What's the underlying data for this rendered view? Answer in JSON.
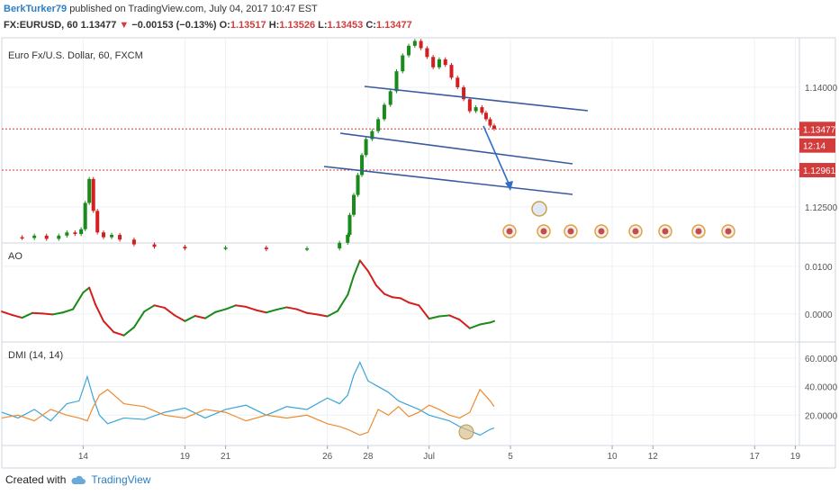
{
  "header": {
    "author": "BerkTurker79",
    "published_text": "published on TradingView.com, July 04, 2017 10:47 EST",
    "symbol": "FX:EURUSD, 60",
    "last": "1.13477",
    "change": "−0.00153 (−0.13%)",
    "o_label": "O:",
    "o": "1.13517",
    "h_label": "H:",
    "h": "1.13526",
    "l_label": "L:",
    "l": "1.13453",
    "c_label": "C:",
    "c": "1.13477"
  },
  "colors": {
    "up": "#1a8a1a",
    "down": "#d21f1f",
    "trendline": "#3a5aa0",
    "pricebox": "#d23c3c",
    "dmi_plus": "#3aa6d8",
    "dmi_minus": "#f08a30"
  },
  "chart_data": [
    {
      "type": "candlestick",
      "title": "Euro Fx/U.S. Dollar, 60, FXCM",
      "y_ticks": [
        "1.14000",
        "1.12500"
      ],
      "y_tick_values": [
        1.14,
        1.125
      ],
      "ylim": [
        1.1207,
        1.1462
      ],
      "price_labels": [
        {
          "label": "1.13477",
          "value": 1.13477
        },
        {
          "label": "12:14",
          "value": 1.1327
        },
        {
          "label": "1.12961",
          "value": 1.12961
        }
      ],
      "hlines": [
        1.13477,
        1.12961
      ],
      "x_ticks": [
        "14",
        "19",
        "21",
        "26",
        "28",
        "Jul",
        "5",
        "10",
        "12",
        "17",
        "19"
      ],
      "x_tick_values": [
        14,
        19,
        21,
        26,
        28,
        31,
        35,
        40,
        42,
        47,
        49
      ],
      "xlim": [
        10.0,
        49.2
      ],
      "series_close": [
        [
          10.0,
          1.1212
        ],
        [
          11.0,
          1.1211
        ],
        [
          11.6,
          1.1214
        ],
        [
          12.2,
          1.121
        ],
        [
          12.8,
          1.1214
        ],
        [
          13.2,
          1.1218
        ],
        [
          13.6,
          1.1216
        ],
        [
          13.9,
          1.1222
        ],
        [
          14.1,
          1.1255
        ],
        [
          14.3,
          1.1285
        ],
        [
          14.5,
          1.1245
        ],
        [
          14.7,
          1.1218
        ],
        [
          15.0,
          1.1212
        ],
        [
          15.4,
          1.1215
        ],
        [
          15.8,
          1.1209
        ],
        [
          16.5,
          1.1203
        ],
        [
          17.5,
          1.12
        ],
        [
          19.0,
          1.1198
        ],
        [
          21.0,
          1.1199
        ],
        [
          23.0,
          1.1197
        ],
        [
          25.0,
          1.1198
        ],
        [
          26.6,
          1.1205
        ],
        [
          27.0,
          1.1215
        ],
        [
          27.1,
          1.124
        ],
        [
          27.3,
          1.1265
        ],
        [
          27.5,
          1.129
        ],
        [
          27.7,
          1.1315
        ],
        [
          27.9,
          1.1335
        ],
        [
          28.2,
          1.1345
        ],
        [
          28.5,
          1.136
        ],
        [
          28.8,
          1.1378
        ],
        [
          29.1,
          1.1395
        ],
        [
          29.4,
          1.142
        ],
        [
          29.7,
          1.144
        ],
        [
          30.0,
          1.1452
        ],
        [
          30.3,
          1.1458
        ],
        [
          30.6,
          1.1449
        ],
        [
          30.9,
          1.1438
        ],
        [
          31.2,
          1.1425
        ],
        [
          31.5,
          1.1435
        ],
        [
          31.8,
          1.1428
        ],
        [
          32.1,
          1.1412
        ],
        [
          32.4,
          1.14
        ],
        [
          32.7,
          1.1385
        ],
        [
          33.0,
          1.137
        ],
        [
          33.3,
          1.1375
        ],
        [
          33.6,
          1.1368
        ],
        [
          33.8,
          1.136
        ],
        [
          34.0,
          1.1352
        ],
        [
          34.2,
          1.1348
        ]
      ]
    },
    {
      "type": "line",
      "title": "AO",
      "y_ticks": [
        "0.0100",
        "0.0000"
      ],
      "y_tick_values": [
        0.01,
        0.0
      ],
      "ylim": [
        -0.0055,
        0.0145
      ],
      "x": [
        10,
        10.5,
        11,
        11.5,
        12,
        12.5,
        13,
        13.5,
        14,
        14.3,
        14.6,
        15,
        15.5,
        16,
        16.5,
        17,
        17.5,
        18,
        18.5,
        19,
        19.5,
        20,
        20.5,
        21,
        21.5,
        22,
        22.5,
        23,
        23.5,
        24,
        24.5,
        25,
        25.5,
        26,
        26.5,
        27,
        27.3,
        27.6,
        28,
        28.4,
        28.8,
        29.2,
        29.6,
        30,
        30.5,
        31,
        31.5,
        32,
        32.5,
        33,
        33.5,
        34,
        34.2
      ],
      "values": [
        0.0005,
        -0.0002,
        -0.0008,
        0.0002,
        0.0001,
        -0.0001,
        0.0003,
        0.001,
        0.0045,
        0.0055,
        0.002,
        -0.0015,
        -0.0038,
        -0.0045,
        -0.0028,
        0.0005,
        0.0018,
        0.0013,
        -0.0003,
        -0.0015,
        -0.0004,
        -0.0009,
        0.0004,
        0.001,
        0.0018,
        0.0015,
        0.0008,
        0.0003,
        0.0009,
        0.0014,
        0.001,
        0.0002,
        -0.0001,
        -0.0005,
        0.0006,
        0.004,
        0.008,
        0.0112,
        0.009,
        0.006,
        0.0042,
        0.0035,
        0.0033,
        0.0024,
        0.0018,
        -0.001,
        -0.0005,
        -0.0003,
        -0.0012,
        -0.003,
        -0.0022,
        -0.0018,
        -0.0015
      ]
    },
    {
      "type": "line",
      "title": "DMI (14, 14)",
      "y_ticks": [
        "60.0000",
        "40.0000",
        "20.0000"
      ],
      "y_tick_values": [
        60,
        40,
        20
      ],
      "ylim": [
        0,
        70
      ],
      "series": [
        {
          "color": "#3aa6d8",
          "x": [
            10,
            10.8,
            11.6,
            12.4,
            13.2,
            13.8,
            14.2,
            14.5,
            14.8,
            15.2,
            16,
            17,
            18,
            19,
            20,
            21,
            22,
            23,
            24,
            25,
            26,
            26.6,
            27,
            27.3,
            27.6,
            28,
            28.5,
            29,
            29.5,
            30,
            30.5,
            31,
            31.5,
            32,
            32.5,
            33,
            33.5,
            34,
            34.2
          ],
          "values": [
            22,
            18,
            24,
            16,
            28,
            30,
            47,
            32,
            20,
            14,
            18,
            17,
            22,
            25,
            18,
            24,
            27,
            20,
            26,
            24,
            32,
            28,
            34,
            48,
            57,
            44,
            40,
            36,
            30,
            27,
            24,
            20,
            18,
            16,
            12,
            9,
            6,
            10,
            11
          ]
        },
        {
          "color": "#f08a30",
          "x": [
            10,
            10.8,
            11.6,
            12.4,
            13.2,
            13.8,
            14.2,
            14.5,
            14.8,
            15.2,
            16,
            17,
            18,
            19,
            20,
            21,
            22,
            23,
            24,
            25,
            26,
            26.6,
            27,
            27.3,
            27.6,
            28,
            28.5,
            29,
            29.5,
            30,
            30.5,
            31,
            31.5,
            32,
            32.5,
            33,
            33.5,
            34,
            34.2
          ],
          "values": [
            18,
            20,
            16,
            24,
            20,
            18,
            16,
            26,
            34,
            38,
            28,
            26,
            20,
            18,
            24,
            22,
            16,
            20,
            18,
            20,
            14,
            12,
            10,
            8,
            6,
            8,
            24,
            20,
            26,
            19,
            22,
            27,
            24,
            20,
            18,
            22,
            38,
            30,
            26
          ]
        }
      ]
    }
  ],
  "footer": {
    "created_with": "Created with",
    "brand": "TradingView"
  }
}
